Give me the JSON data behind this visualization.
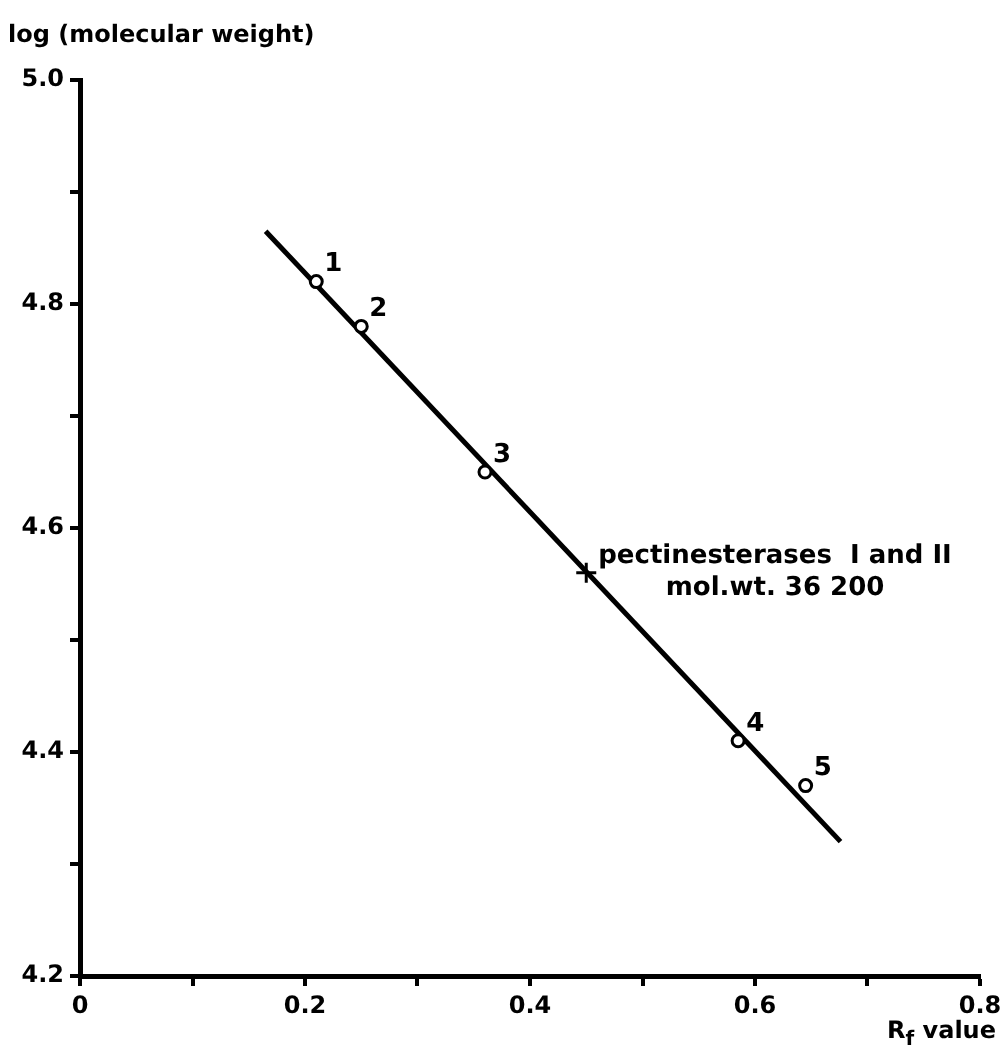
{
  "chart_data": {
    "type": "scatter",
    "xlabel": "R$_{f}$  value",
    "ylabel": "log (molecular weight)",
    "xlim": [
      0,
      0.8
    ],
    "ylim": [
      4.2,
      5
    ],
    "xticks": [
      0,
      {
        "value": 0.1,
        "label": null
      },
      0.2,
      {
        "value": 0.3,
        "label": null
      },
      0.4,
      {
        "value": 0.5,
        "label": null
      },
      0.6,
      {
        "value": 0.7,
        "label": null
      },
      0.8
    ],
    "yticks": [
      4.2,
      {
        "value": 4.3,
        "label": null
      },
      4.4,
      {
        "value": 4.5,
        "label": null
      },
      4.6,
      {
        "value": 4.7,
        "label": null
      },
      4.8,
      {
        "value": 4.9,
        "label": null
      },
      {
        "value": 5,
        "label": "5.0"
      }
    ],
    "grid": false,
    "legend": false,
    "series": [
      {
        "marker": "circle",
        "color": "#000000",
        "x": [
          0.21,
          0.25,
          0.36,
          0.585,
          0.645
        ],
        "values": [
          4.82,
          4.78,
          4.65,
          4.41,
          4.37
        ]
      },
      {
        "marker": "cross",
        "color": "#000000",
        "x": [
          0.45
        ],
        "values": [
          4.56
        ]
      },
      {
        "type": "line",
        "marker": "none",
        "color": "#000000",
        "x": [
          0.165,
          0.676
        ],
        "values": [
          4.865,
          4.32
        ]
      }
    ],
    "annotations": [
      {
        "text": "1",
        "x": 0.21,
        "y": 4.82
      },
      {
        "text": "2",
        "x": 0.25,
        "y": 4.78
      },
      {
        "text": "3",
        "x": 0.36,
        "y": 4.65
      },
      {
        "text": "4",
        "x": 0.585,
        "y": 4.41
      },
      {
        "text": "5",
        "x": 0.645,
        "y": 4.37
      },
      {
        "text": "pectinesterases  I and II\nmol.wt. 36 200",
        "x": 0.45,
        "y": 4.56
      }
    ]
  }
}
